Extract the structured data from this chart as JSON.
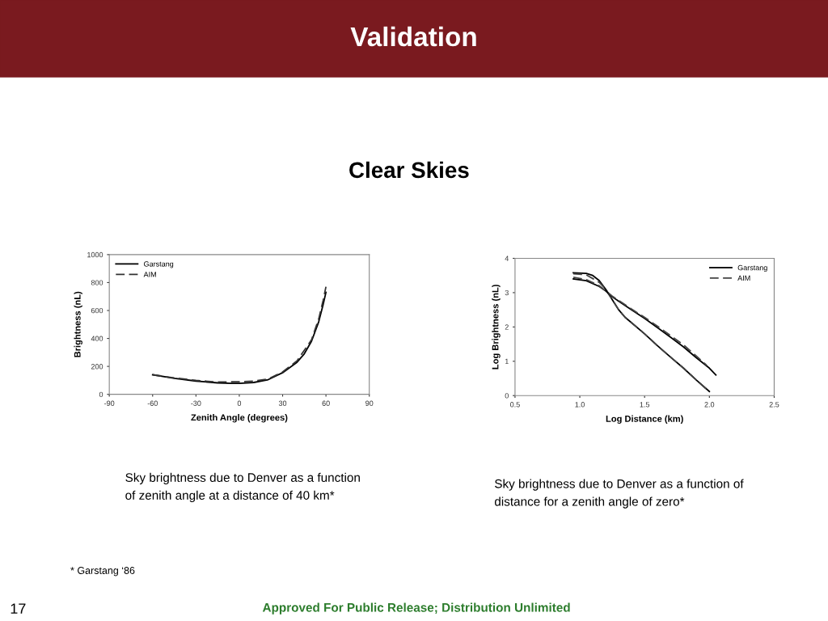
{
  "chart_data": [
    {
      "type": "line",
      "title": "Validation",
      "subtitle": "Clear Skies",
      "xlabel": "Zenith Angle (degrees)",
      "ylabel": "Brightness (nL)",
      "annotations": [
        "Sky brightness due to Denver as a function\nof zenith angle at a distance of 40 km*",
        "* Garstang ‘86",
        "17",
        "Approved For Public Release; Distribution Unlimited"
      ],
      "series": [
        {
          "name": "Garstang",
          "color": "#000000",
          "line_style": "solid",
          "x": [
            -60,
            -45,
            -30,
            -15,
            -5,
            0,
            10,
            20,
            30,
            40,
            45,
            50,
            55,
            58,
            60
          ],
          "values": [
            140,
            115,
            95,
            82,
            78,
            78,
            85,
            105,
            155,
            230,
            290,
            380,
            520,
            640,
            730
          ]
        },
        {
          "name": "AIM",
          "color": "#333333",
          "line_style": "dashed",
          "x": [
            -60,
            -45,
            -30,
            -15,
            0,
            10,
            20,
            30,
            40,
            50,
            55,
            58,
            60
          ],
          "values": [
            140,
            118,
            100,
            88,
            90,
            95,
            110,
            160,
            240,
            390,
            540,
            670,
            770
          ]
        }
      ],
      "xlim": [
        -90,
        90
      ],
      "xticks": [
        -90,
        -30,
        0,
        30,
        60,
        90,
        -60
      ],
      "ylim": [
        0,
        1000
      ],
      "yticks": [
        0,
        200,
        400,
        600,
        800,
        1000
      ],
      "grid": false,
      "legend": "top left"
    },
    {
      "type": "line",
      "xlabel": "Log Distance (km)",
      "ylabel": "Log Brightness (nL)",
      "annotations": [
        "Sky brightness due to Denver as a function of\ndistance for a zenith angle of zero*"
      ],
      "series": [
        {
          "name": "Garstang",
          "color": "#000000",
          "line_style": "solid",
          "x": [
            0.95,
            1.05,
            1.1,
            1.15,
            1.2,
            1.25,
            1.3,
            1.35,
            1.4,
            1.5,
            1.6,
            1.7,
            1.8,
            1.9,
            2.0
          ],
          "values": [
            3.58,
            3.56,
            3.5,
            3.35,
            3.1,
            2.8,
            2.5,
            2.28,
            2.12,
            1.8,
            1.45,
            1.12,
            0.8,
            0.45,
            0.12
          ]
        },
        {
          "name": "AIM",
          "color": "#444444",
          "line_style": "dashed",
          "x": [
            0.95,
            1.05,
            1.15,
            1.2,
            1.25,
            1.3,
            1.35,
            1.4,
            1.5,
            1.6,
            1.7,
            1.8,
            1.9,
            1.98
          ],
          "values": [
            3.55,
            3.52,
            3.3,
            3.1,
            2.8,
            2.5,
            2.28,
            2.12,
            1.8,
            1.45,
            1.12,
            0.8,
            0.45,
            0.18
          ]
        },
        {
          "color": "#000000",
          "line_style": "solid",
          "x": [
            0.95,
            1.05,
            1.15,
            1.2,
            1.25,
            1.3,
            1.4,
            1.5,
            1.6,
            1.7,
            1.8,
            1.9,
            2.0,
            2.05
          ],
          "values": [
            3.4,
            3.35,
            3.18,
            3.05,
            2.88,
            2.75,
            2.5,
            2.25,
            1.98,
            1.7,
            1.42,
            1.1,
            0.8,
            0.6
          ]
        },
        {
          "color": "#444444",
          "line_style": "dashed",
          "x": [
            0.95,
            1.05,
            1.15,
            1.25,
            1.4,
            1.5,
            1.6,
            1.7,
            1.8,
            1.9,
            1.98
          ],
          "values": [
            3.45,
            3.38,
            3.2,
            2.9,
            2.52,
            2.28,
            2.02,
            1.75,
            1.48,
            1.15,
            0.88
          ]
        }
      ],
      "xlim": [
        0.5,
        2.5
      ],
      "xticks": [
        0.5,
        {
          "value": 1,
          "label": "1.0"
        },
        1.5,
        {
          "value": 2,
          "label": "2.0"
        },
        2.5
      ],
      "ylim": [
        0,
        4
      ],
      "yticks": [
        0,
        1,
        2,
        3,
        4
      ],
      "grid": false,
      "legend": "top right"
    }
  ]
}
